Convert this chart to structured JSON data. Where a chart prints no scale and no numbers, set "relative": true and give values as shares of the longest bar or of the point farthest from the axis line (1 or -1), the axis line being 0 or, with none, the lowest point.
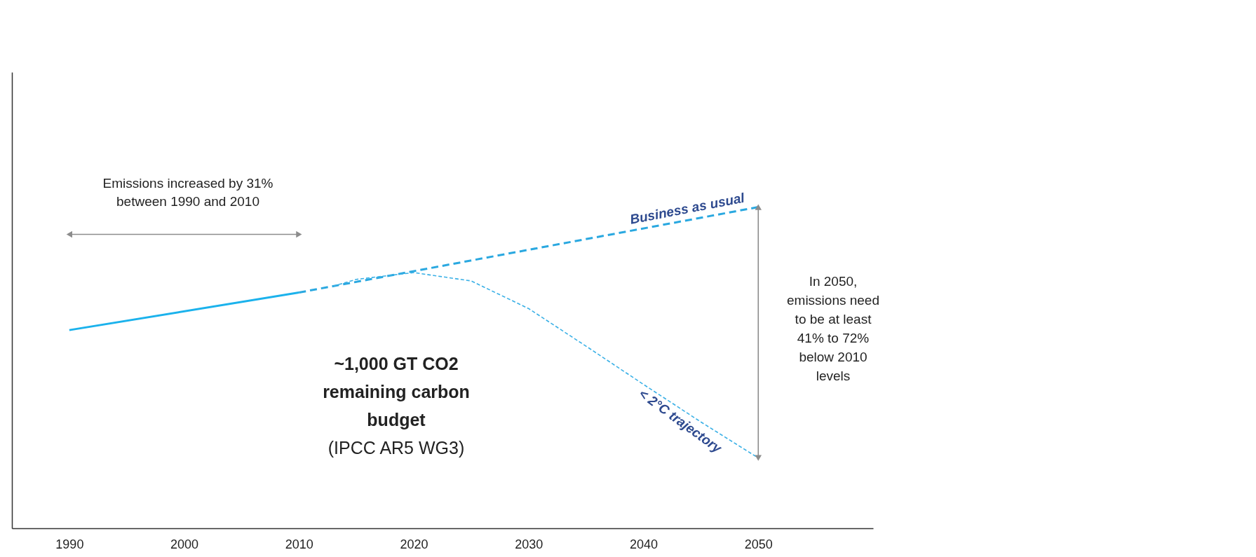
{
  "chart_data": {
    "type": "line",
    "relative": true,
    "xlim": [
      1985,
      2060
    ],
    "xticks": [
      1990,
      2000,
      2010,
      2020,
      2030,
      2040,
      2050
    ],
    "series": [
      {
        "color": "#1bb2ec",
        "line_style": "solid",
        "x": [
          1990,
          2010
        ],
        "values": [
          0.617,
          0.734
        ]
      },
      {
        "name": "Business as usual",
        "color": "#2aa8e0",
        "line_style": "dashed",
        "x": [
          2010,
          2050
        ],
        "values": [
          0.734,
          1.0
        ]
      },
      {
        "name": "< 2°C trajectory",
        "color": "#3ab0e6",
        "line_style": "dashed",
        "x": [
          2013,
          2015,
          2020,
          2025,
          2030,
          2035,
          2040,
          2045,
          2050
        ],
        "values": [
          0.754,
          0.775,
          0.796,
          0.77,
          0.684,
          0.567,
          0.448,
          0.331,
          0.219
        ]
      }
    ],
    "annotations": [
      "Emissions increased by 31% between 1990 and 2010",
      "In 2050, emissions need to be at least 41% to 72% below 2010 levels",
      "~1,000 GT CO2 remaining carbon budget",
      "(IPCC AR5 WG3)"
    ]
  }
}
